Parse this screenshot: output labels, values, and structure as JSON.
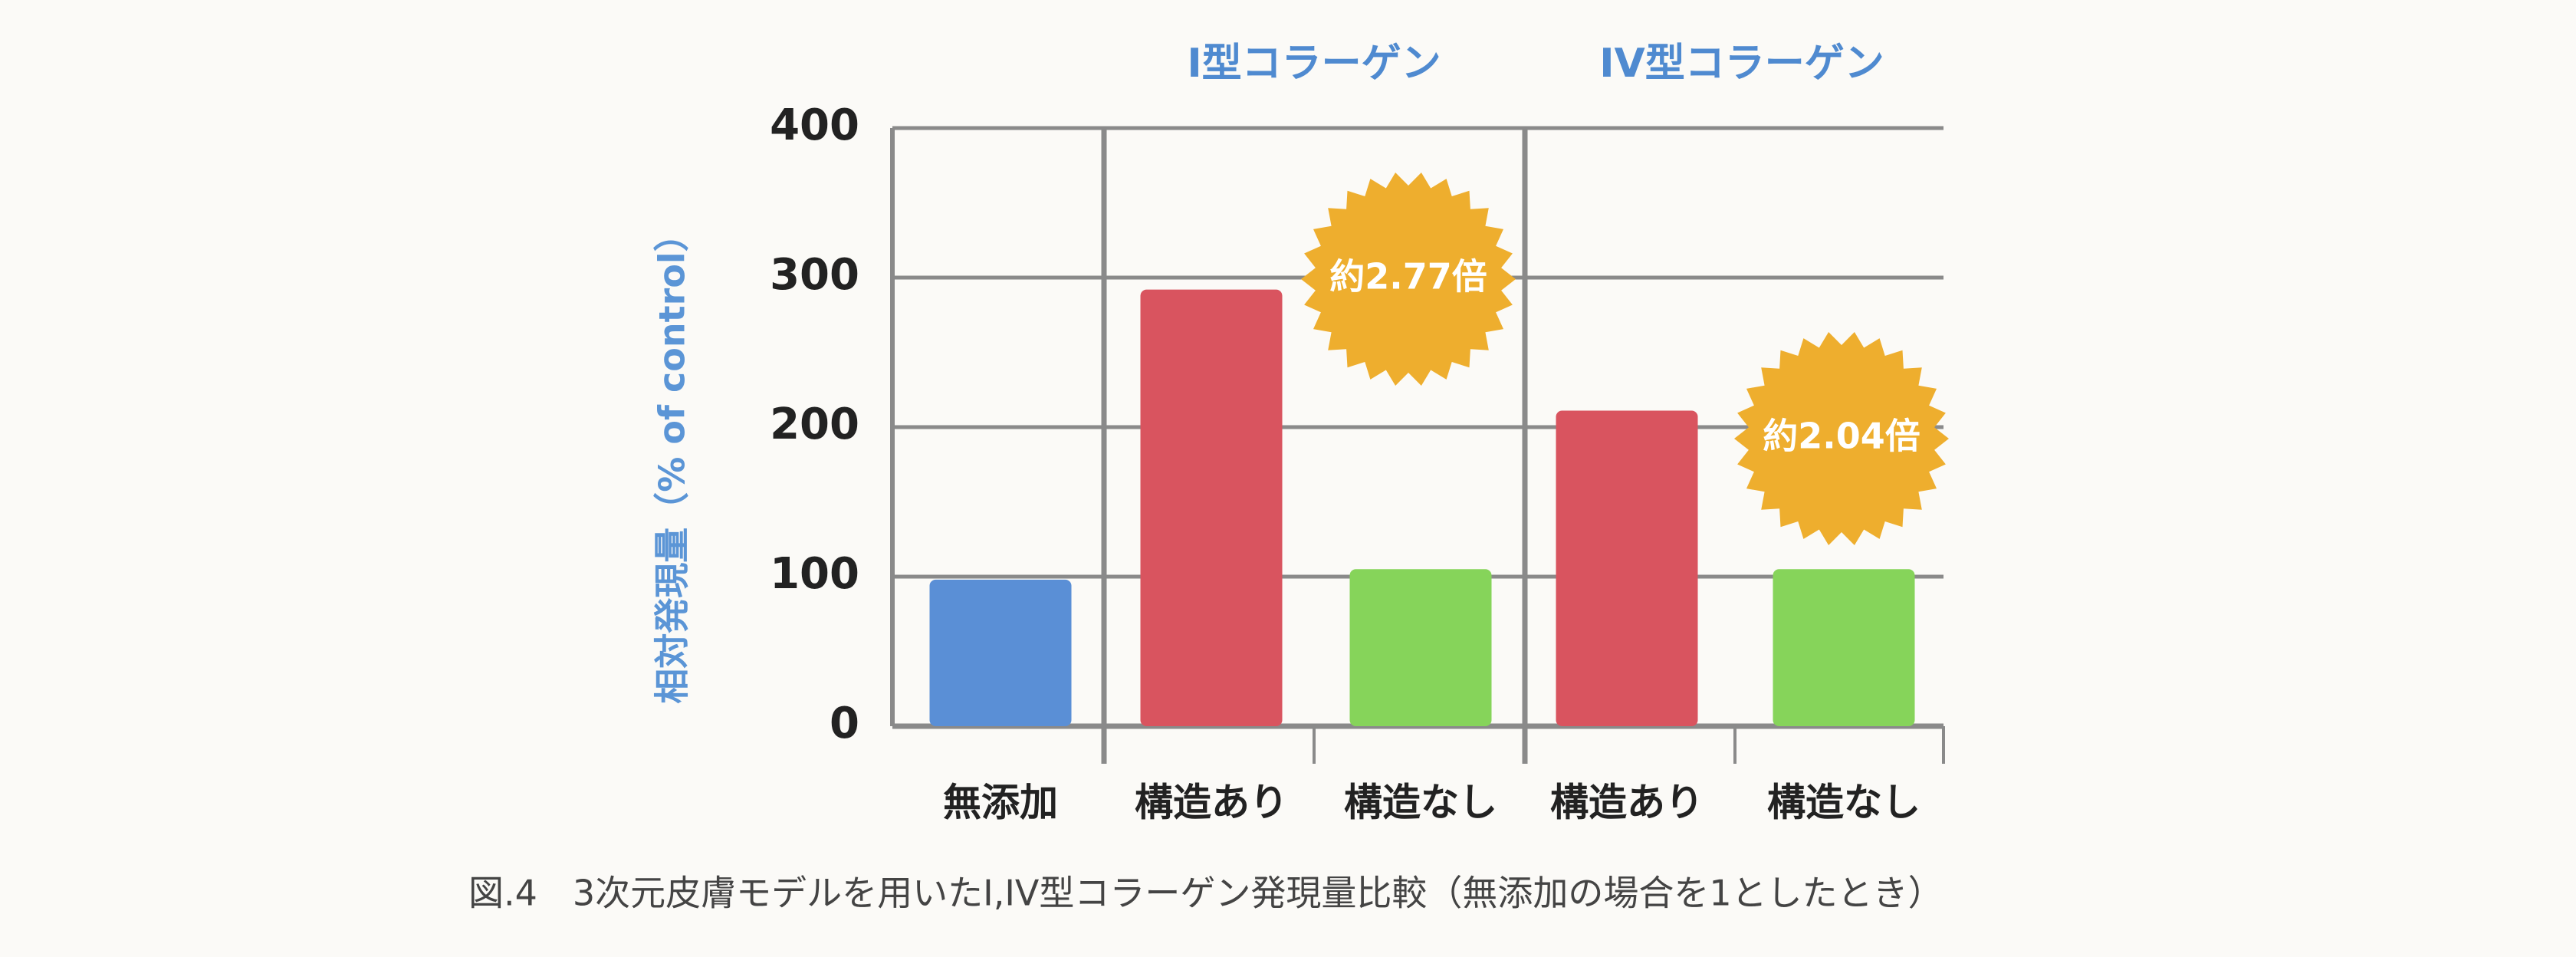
{
  "chart_data": {
    "type": "bar",
    "ylabel": "相対発現量（% of control）",
    "caption": "図.4　3次元皮膚モデルを用いたI,IV型コラーゲン発現量比較（無添加の場合を1としたとき）",
    "group_labels": [
      "I型コラーゲン",
      "IV型コラーゲン"
    ],
    "categories": [
      "無添加",
      "構造あり",
      "構造なし",
      "構造あり",
      "構造なし"
    ],
    "values": [
      98,
      292,
      105,
      211,
      105
    ],
    "colors": [
      "#5a8fd6",
      "#d9545f",
      "#86d45a",
      "#d9545f",
      "#86d45a"
    ],
    "annotations": [
      "約2.77倍",
      "約2.04倍"
    ],
    "annotation_color": "#eeae2e",
    "ylim": [
      0,
      400
    ],
    "yticks": [
      0,
      100,
      200,
      300,
      400
    ],
    "grid": true
  }
}
